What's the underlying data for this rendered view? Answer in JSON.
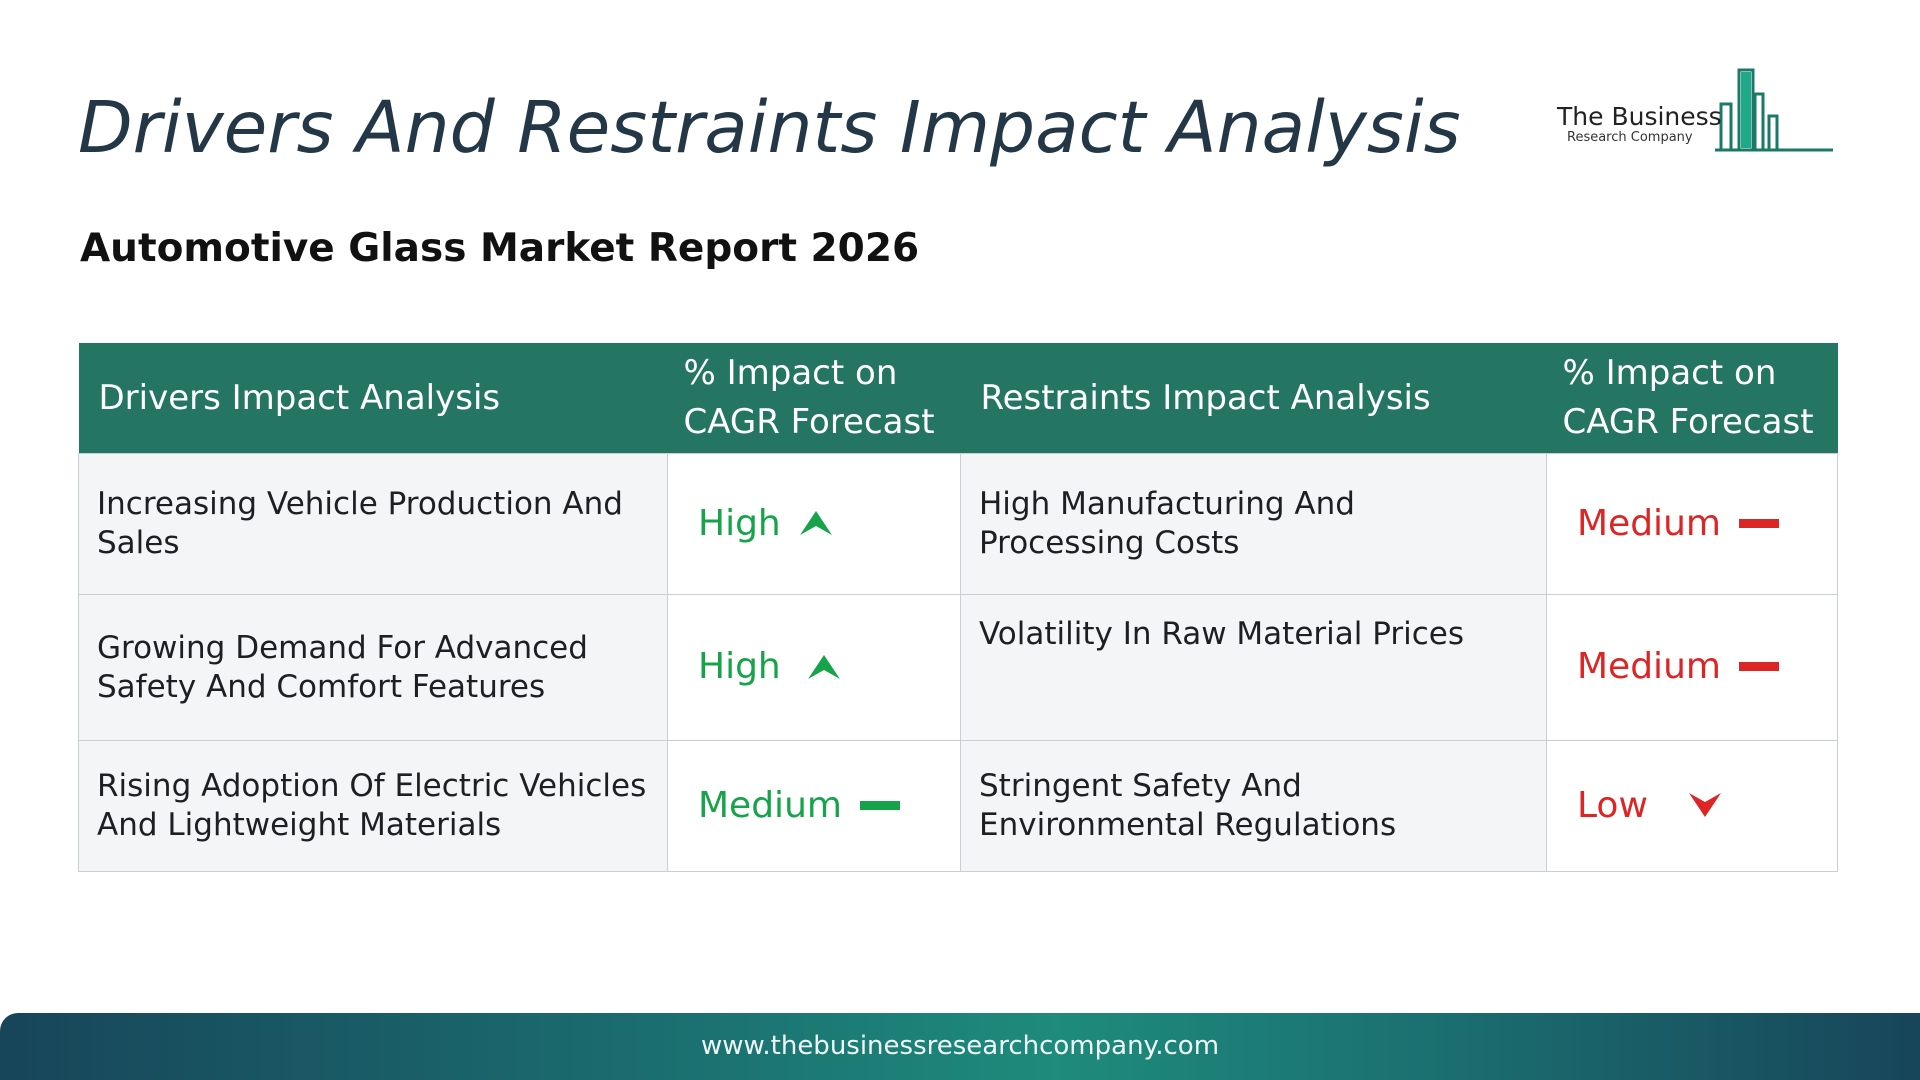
{
  "header": {
    "title": "Drivers And Restraints Impact Analysis",
    "subtitle": "Automotive Glass Market Report 2026"
  },
  "logo": {
    "name": "The Business",
    "tagline": "Research Company",
    "icon": "city-bars-icon",
    "color": "#1a7a66"
  },
  "table": {
    "headers": {
      "drivers": "Drivers Impact Analysis",
      "drivers_impact": "% Impact on CAGR Forecast",
      "restraints": "Restraints Impact Analysis",
      "restraints_impact": "% Impact on CAGR Forecast"
    },
    "rows": [
      {
        "driver": "Increasing Vehicle Production And Sales",
        "driver_impact": "High",
        "driver_icon": "arrow-up-icon",
        "restraint": "High Manufacturing And Processing Costs",
        "restraint_impact": "Medium",
        "restraint_icon": "dash-icon"
      },
      {
        "driver": "Growing Demand For Advanced Safety And Comfort Features",
        "driver_impact": "High",
        "driver_icon": "arrow-up-icon",
        "restraint": "Volatility In Raw Material Prices",
        "restraint_impact": "Medium",
        "restraint_icon": "dash-icon"
      },
      {
        "driver": "Rising Adoption Of Electric Vehicles And Lightweight Materials",
        "driver_impact": "Medium",
        "driver_icon": "dash-icon",
        "restraint": "Stringent Safety And Environmental Regulations",
        "restraint_impact": "Low",
        "restraint_icon": "arrow-down-icon"
      }
    ]
  },
  "colors": {
    "header_bg": "#257563",
    "driver_level": "#16a34a",
    "restraint_level": "#dc2626"
  },
  "footer": {
    "url": "www.thebusinessresearchcompany.com"
  }
}
